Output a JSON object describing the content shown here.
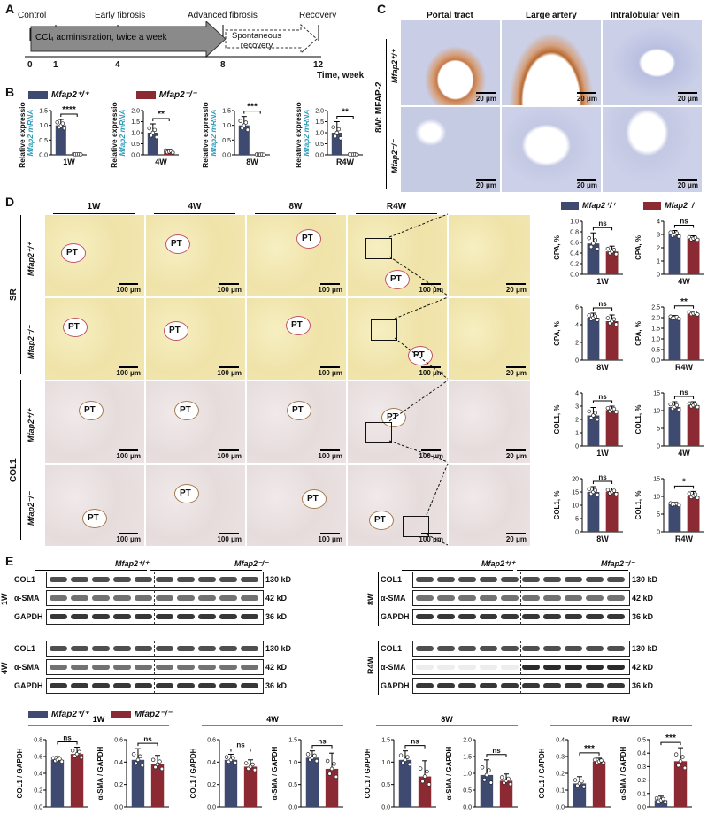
{
  "colors": {
    "wt": "#3e4a70",
    "ko": "#8b2a32",
    "wtLight": "#8fa0c9",
    "koLight": "#c8777d"
  },
  "labels": {
    "A": "A",
    "B": "B",
    "C": "C",
    "D": "D",
    "E": "E"
  },
  "timeline": {
    "stages": [
      "Control",
      "Early fibrosis",
      "Advanced fibrosis",
      "Recovery"
    ],
    "arrow_text": "CCl₄ administration, twice a week",
    "spont1": "Spontaneous",
    "spont2": "recovery",
    "ticks": [
      "0",
      "1",
      "4",
      "8",
      "12"
    ],
    "axis_label1": "Time, week"
  },
  "legend": {
    "wt": "Mfap2⁺/⁺",
    "ko": "Mfap2⁻/⁻"
  },
  "panelB": {
    "ylabel1": "Relative expression",
    "ylabel2": "Mfap2 mRNA"
  },
  "panelC": {
    "columns": [
      "Portal tract",
      "Large artery",
      "Intralobular vein"
    ],
    "side": "8W: MFAP-2",
    "rows": [
      "Mfap2⁺/⁺",
      "Mfap2⁻/⁻"
    ],
    "scale": "20 μm"
  },
  "panelD": {
    "columns": [
      "1W",
      "4W",
      "8W",
      "R4W"
    ],
    "stains": [
      "SR",
      "COL1"
    ],
    "rows": [
      "Mfap2⁺/⁺",
      "Mfap2⁻/⁻",
      "Mfap2⁺/⁺",
      "Mfap2⁻/⁻"
    ],
    "pt": "PT",
    "scale100": "100 μm",
    "scale20": "20 μm"
  },
  "panelE": {
    "groups": [
      "Mfap2⁺/⁺",
      "Mfap2⁻/⁻"
    ],
    "blots": [
      {
        "time": "1W",
        "rows": [
          "COL1",
          "α-SMA",
          "GAPDH"
        ],
        "kd": [
          "130 kD",
          "42 kD",
          "36 kD"
        ]
      },
      {
        "time": "4W",
        "rows": [
          "COL1",
          "α-SMA",
          "GAPDH"
        ],
        "kd": [
          "130 kD",
          "42 kD",
          "36 kD"
        ]
      },
      {
        "time": "8W",
        "rows": [
          "COL1",
          "α-SMA",
          "GAPDH"
        ],
        "kd": [
          "130 kD",
          "42 kD",
          "36 kD"
        ]
      },
      {
        "time": "R4W",
        "rows": [
          "COL1",
          "α-SMA",
          "GAPDH"
        ],
        "kd": [
          "130 kD",
          "42 kD",
          "36 kD"
        ]
      }
    ],
    "groupTitles": [
      "1W",
      "4W",
      "8W",
      "R4W"
    ]
  },
  "chart_data": [
    {
      "id": "B-1W",
      "type": "bar",
      "categories": [
        "Mfap2+/+",
        "Mfap2-/-"
      ],
      "values": [
        1.0,
        0.02
      ],
      "errors": [
        0.2,
        0.01
      ],
      "xlabel": "1W",
      "ylabel": "Relative expression Mfap2 mRNA",
      "ylim": [
        0,
        1.5
      ],
      "yticks": [
        "0.0",
        "0.5",
        "1.0",
        "1.5"
      ],
      "sig": "****"
    },
    {
      "id": "B-4W",
      "type": "bar",
      "categories": [
        "Mfap2+/+",
        "Mfap2-/-"
      ],
      "values": [
        1.0,
        0.15
      ],
      "errors": [
        0.4,
        0.1
      ],
      "xlabel": "4W",
      "ylabel": "Relative expression Mfap2 mRNA",
      "ylim": [
        0,
        2.0
      ],
      "yticks": [
        "0.0",
        "0.5",
        "1.0",
        "1.5",
        "2.0"
      ],
      "sig": "**"
    },
    {
      "id": "B-8W",
      "type": "bar",
      "categories": [
        "Mfap2+/+",
        "Mfap2-/-"
      ],
      "values": [
        1.0,
        0.01
      ],
      "errors": [
        0.3,
        0.01
      ],
      "xlabel": "8W",
      "ylabel": "Relative expression Mfap2 mRNA",
      "ylim": [
        0,
        1.5
      ],
      "yticks": [
        "0.0",
        "0.5",
        "1.0",
        "1.5"
      ],
      "sig": "***"
    },
    {
      "id": "B-R4W",
      "type": "bar",
      "categories": [
        "Mfap2+/+",
        "Mfap2-/-"
      ],
      "values": [
        1.0,
        0.02
      ],
      "errors": [
        0.5,
        0.01
      ],
      "xlabel": "R4W",
      "ylabel": "Relative expression Mfap2 mRNA",
      "ylim": [
        0,
        2.0
      ],
      "yticks": [
        "0.0",
        "0.5",
        "1.0",
        "1.5",
        "2.0"
      ],
      "sig": "**"
    },
    {
      "id": "D-CPA-1W",
      "type": "bar",
      "categories": [
        "Mfap2+/+",
        "Mfap2-/-"
      ],
      "values": [
        0.58,
        0.43
      ],
      "errors": [
        0.2,
        0.1
      ],
      "xlabel": "1W",
      "ylabel": "CPA, %",
      "ylim": [
        0,
        1.0
      ],
      "yticks": [
        "0.0",
        "0.2",
        "0.4",
        "0.6",
        "0.8",
        "1.0"
      ],
      "sig": "ns"
    },
    {
      "id": "D-CPA-4W",
      "type": "bar",
      "categories": [
        "Mfap2+/+",
        "Mfap2-/-"
      ],
      "values": [
        3.0,
        2.7
      ],
      "errors": [
        0.3,
        0.2
      ],
      "xlabel": "4W",
      "ylabel": "CPA, %",
      "ylim": [
        0,
        4
      ],
      "yticks": [
        "0",
        "1",
        "2",
        "3",
        "4"
      ],
      "sig": "ns"
    },
    {
      "id": "D-CPA-8W",
      "type": "bar",
      "categories": [
        "Mfap2+/+",
        "Mfap2-/-"
      ],
      "values": [
        4.8,
        4.4
      ],
      "errors": [
        0.5,
        0.7
      ],
      "xlabel": "8W",
      "ylabel": "CPA, %",
      "ylim": [
        0,
        6
      ],
      "yticks": [
        "0",
        "2",
        "4",
        "6"
      ],
      "sig": "ns"
    },
    {
      "id": "D-CPA-R4W",
      "type": "bar",
      "categories": [
        "Mfap2+/+",
        "Mfap2-/-"
      ],
      "values": [
        2.0,
        2.2
      ],
      "errors": [
        0.1,
        0.1
      ],
      "xlabel": "R4W",
      "ylabel": "CPA, %",
      "ylim": [
        0,
        2.5
      ],
      "yticks": [
        "0.0",
        "0.5",
        "1.0",
        "1.5",
        "2.0",
        "2.5"
      ],
      "sig": "**"
    },
    {
      "id": "D-COL1-1W",
      "type": "bar",
      "categories": [
        "Mfap2+/+",
        "Mfap2-/-"
      ],
      "values": [
        2.3,
        2.7
      ],
      "errors": [
        0.6,
        0.3
      ],
      "xlabel": "1W",
      "ylabel": "COL1, %",
      "ylim": [
        0,
        4
      ],
      "yticks": [
        "0",
        "1",
        "2",
        "3",
        "4"
      ],
      "sig": "ns"
    },
    {
      "id": "D-COL1-4W",
      "type": "bar",
      "categories": [
        "Mfap2+/+",
        "Mfap2-/-"
      ],
      "values": [
        11.0,
        11.5
      ],
      "errors": [
        1.5,
        1.0
      ],
      "xlabel": "4W",
      "ylabel": "COL1, %",
      "ylim": [
        0,
        15
      ],
      "yticks": [
        "0",
        "5",
        "10",
        "15"
      ],
      "sig": "ns"
    },
    {
      "id": "D-COL1-8W",
      "type": "bar",
      "categories": [
        "Mfap2+/+",
        "Mfap2-/-"
      ],
      "values": [
        15.0,
        15.0
      ],
      "errors": [
        2.0,
        1.5
      ],
      "xlabel": "8W",
      "ylabel": "COL1, %",
      "ylim": [
        0,
        20
      ],
      "yticks": [
        "0",
        "5",
        "10",
        "15",
        "20"
      ],
      "sig": "ns"
    },
    {
      "id": "D-COL1-R4W",
      "type": "bar",
      "categories": [
        "Mfap2+/+",
        "Mfap2-/-"
      ],
      "values": [
        7.8,
        10.2
      ],
      "errors": [
        0.5,
        1.2
      ],
      "xlabel": "R4W",
      "ylabel": "COL1, %",
      "ylim": [
        0,
        15
      ],
      "yticks": [
        "0",
        "5",
        "10",
        "15"
      ],
      "sig": "*"
    },
    {
      "id": "E-1W-COL1",
      "type": "bar",
      "categories": [
        "Mfap2+/+",
        "Mfap2-/-"
      ],
      "values": [
        0.56,
        0.63
      ],
      "errors": [
        0.04,
        0.08
      ],
      "xlabel": "",
      "ylabel": "COL1 / GAPDH",
      "ylim": [
        0,
        0.8
      ],
      "yticks": [
        "0.0",
        "0.2",
        "0.4",
        "0.6",
        "0.8"
      ],
      "sig": "ns"
    },
    {
      "id": "E-1W-SMA",
      "type": "bar",
      "categories": [
        "Mfap2+/+",
        "Mfap2-/-"
      ],
      "values": [
        0.42,
        0.38
      ],
      "errors": [
        0.1,
        0.08
      ],
      "xlabel": "",
      "ylabel": "α-SMA / GAPDH",
      "ylim": [
        0,
        0.6
      ],
      "yticks": [
        "0.0",
        "0.2",
        "0.4",
        "0.6"
      ],
      "sig": "ns"
    },
    {
      "id": "E-4W-COL1",
      "type": "bar",
      "categories": [
        "Mfap2+/+",
        "Mfap2-/-"
      ],
      "values": [
        0.42,
        0.36
      ],
      "errors": [
        0.05,
        0.06
      ],
      "xlabel": "",
      "ylabel": "COL1 / GAPDH",
      "ylim": [
        0,
        0.6
      ],
      "yticks": [
        "0.0",
        "0.2",
        "0.4",
        "0.6"
      ],
      "sig": "ns"
    },
    {
      "id": "E-4W-SMA",
      "type": "bar",
      "categories": [
        "Mfap2+/+",
        "Mfap2-/-"
      ],
      "values": [
        1.1,
        0.85
      ],
      "errors": [
        0.15,
        0.35
      ],
      "xlabel": "",
      "ylabel": "α-SMA / GAPDH",
      "ylim": [
        0,
        1.5
      ],
      "yticks": [
        "0.0",
        "0.5",
        "1.0",
        "1.5"
      ],
      "sig": "ns"
    },
    {
      "id": "E-8W-COL1",
      "type": "bar",
      "categories": [
        "Mfap2+/+",
        "Mfap2-/-"
      ],
      "values": [
        1.05,
        0.68
      ],
      "errors": [
        0.2,
        0.35
      ],
      "xlabel": "",
      "ylabel": "COL1 / GAPDH",
      "ylim": [
        0,
        1.5
      ],
      "yticks": [
        "0.0",
        "0.5",
        "1.0",
        "1.5"
      ],
      "sig": "ns"
    },
    {
      "id": "E-8W-SMA",
      "type": "bar",
      "categories": [
        "Mfap2+/+",
        "Mfap2-/-"
      ],
      "values": [
        0.95,
        0.78
      ],
      "errors": [
        0.45,
        0.2
      ],
      "xlabel": "",
      "ylabel": "α-SMA / GAPDH",
      "ylim": [
        0,
        2.0
      ],
      "yticks": [
        "0.0",
        "0.5",
        "1.0",
        "1.5",
        "2.0"
      ],
      "sig": "ns"
    },
    {
      "id": "E-R4W-COL1",
      "type": "bar",
      "categories": [
        "Mfap2+/+",
        "Mfap2-/-"
      ],
      "values": [
        0.14,
        0.27
      ],
      "errors": [
        0.04,
        0.02
      ],
      "xlabel": "",
      "ylabel": "COL1 / GAPDH",
      "ylim": [
        0,
        0.4
      ],
      "yticks": [
        "0.0",
        "0.1",
        "0.2",
        "0.3",
        "0.4"
      ],
      "sig": "***"
    },
    {
      "id": "E-R4W-SMA",
      "type": "bar",
      "categories": [
        "Mfap2+/+",
        "Mfap2-/-"
      ],
      "values": [
        0.05,
        0.34
      ],
      "errors": [
        0.03,
        0.1
      ],
      "xlabel": "",
      "ylabel": "α-SMA / GAPDH",
      "ylim": [
        0,
        0.5
      ],
      "yticks": [
        "0.0",
        "0.1",
        "0.2",
        "0.3",
        "0.4",
        "0.5"
      ],
      "sig": "***"
    }
  ]
}
